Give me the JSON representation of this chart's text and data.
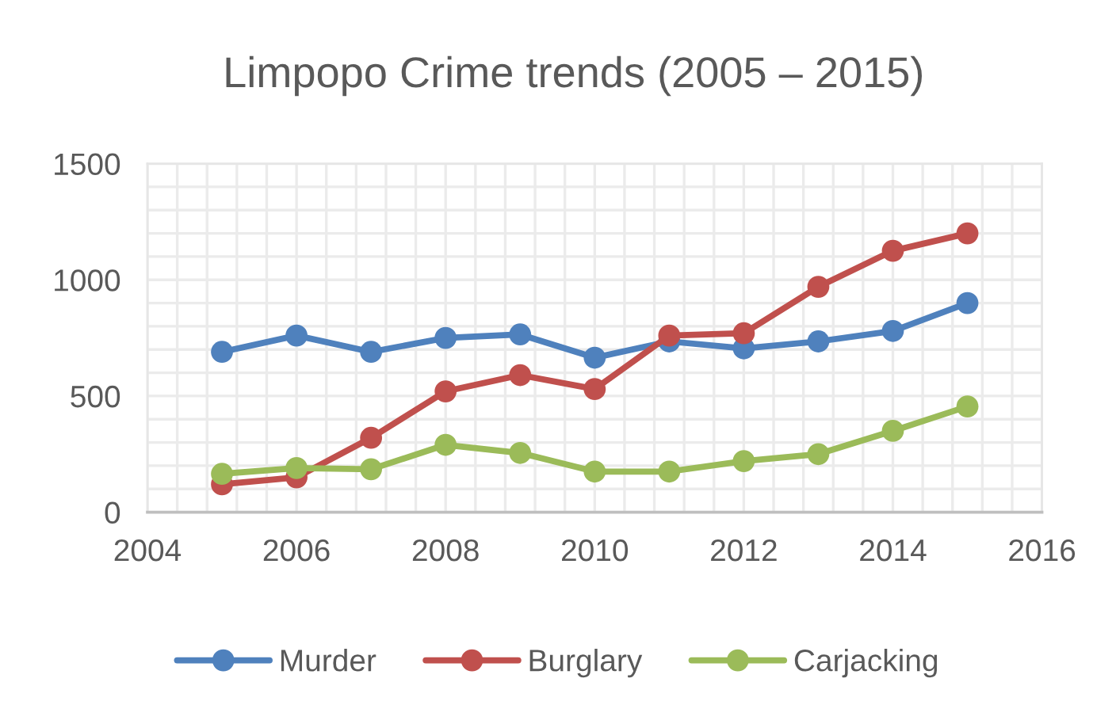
{
  "chart_data": {
    "type": "line",
    "title": "Limpopo Crime trends (2005 – 2015)",
    "x": [
      2005,
      2006,
      2007,
      2008,
      2009,
      2010,
      2011,
      2012,
      2013,
      2014,
      2015
    ],
    "series": [
      {
        "name": "Murder",
        "color": "#4f81bd",
        "values": [
          690,
          760,
          690,
          750,
          765,
          665,
          735,
          705,
          735,
          780,
          900
        ]
      },
      {
        "name": "Burglary",
        "color": "#c0504d",
        "values": [
          120,
          150,
          320,
          520,
          590,
          530,
          760,
          770,
          970,
          1125,
          1200
        ]
      },
      {
        "name": "Carjacking",
        "color": "#9bbb59",
        "values": [
          165,
          190,
          185,
          290,
          255,
          175,
          175,
          220,
          250,
          350,
          455
        ]
      }
    ],
    "xlim": [
      2004,
      2016
    ],
    "xticks": [
      2004,
      {
        "value": 2004.4,
        "label": null
      },
      {
        "value": 2004.8,
        "label": null
      },
      {
        "value": 2005.2,
        "label": null
      },
      {
        "value": 2005.6,
        "label": null
      },
      2006,
      {
        "value": 2006.4,
        "label": null
      },
      {
        "value": 2006.8,
        "label": null
      },
      {
        "value": 2007.2,
        "label": null
      },
      {
        "value": 2007.6,
        "label": null
      },
      2008,
      {
        "value": 2008.4,
        "label": null
      },
      {
        "value": 2008.8,
        "label": null
      },
      {
        "value": 2009.2,
        "label": null
      },
      {
        "value": 2009.6,
        "label": null
      },
      2010,
      {
        "value": 2010.4,
        "label": null
      },
      {
        "value": 2010.8,
        "label": null
      },
      {
        "value": 2011.2,
        "label": null
      },
      {
        "value": 2011.6,
        "label": null
      },
      2012,
      {
        "value": 2012.4,
        "label": null
      },
      {
        "value": 2012.8,
        "label": null
      },
      {
        "value": 2013.2,
        "label": null
      },
      {
        "value": 2013.6,
        "label": null
      },
      2014,
      {
        "value": 2014.4,
        "label": null
      },
      {
        "value": 2014.8,
        "label": null
      },
      {
        "value": 2015.2,
        "label": null
      },
      {
        "value": 2015.6,
        "label": null
      },
      2016
    ],
    "ylim": [
      0,
      1500
    ],
    "yticks": [
      0,
      {
        "value": 100,
        "label": null
      },
      {
        "value": 200,
        "label": null
      },
      {
        "value": 300,
        "label": null
      },
      {
        "value": 400,
        "label": null
      },
      500,
      {
        "value": 600,
        "label": null
      },
      {
        "value": 700,
        "label": null
      },
      {
        "value": 800,
        "label": null
      },
      {
        "value": 900,
        "label": null
      },
      1000,
      {
        "value": 1100,
        "label": null
      },
      {
        "value": 1200,
        "label": null
      },
      {
        "value": 1300,
        "label": null
      },
      {
        "value": 1400,
        "label": null
      },
      1500
    ],
    "grid": true,
    "legend": "bottom",
    "marker": "circle",
    "line_style": "solid"
  }
}
